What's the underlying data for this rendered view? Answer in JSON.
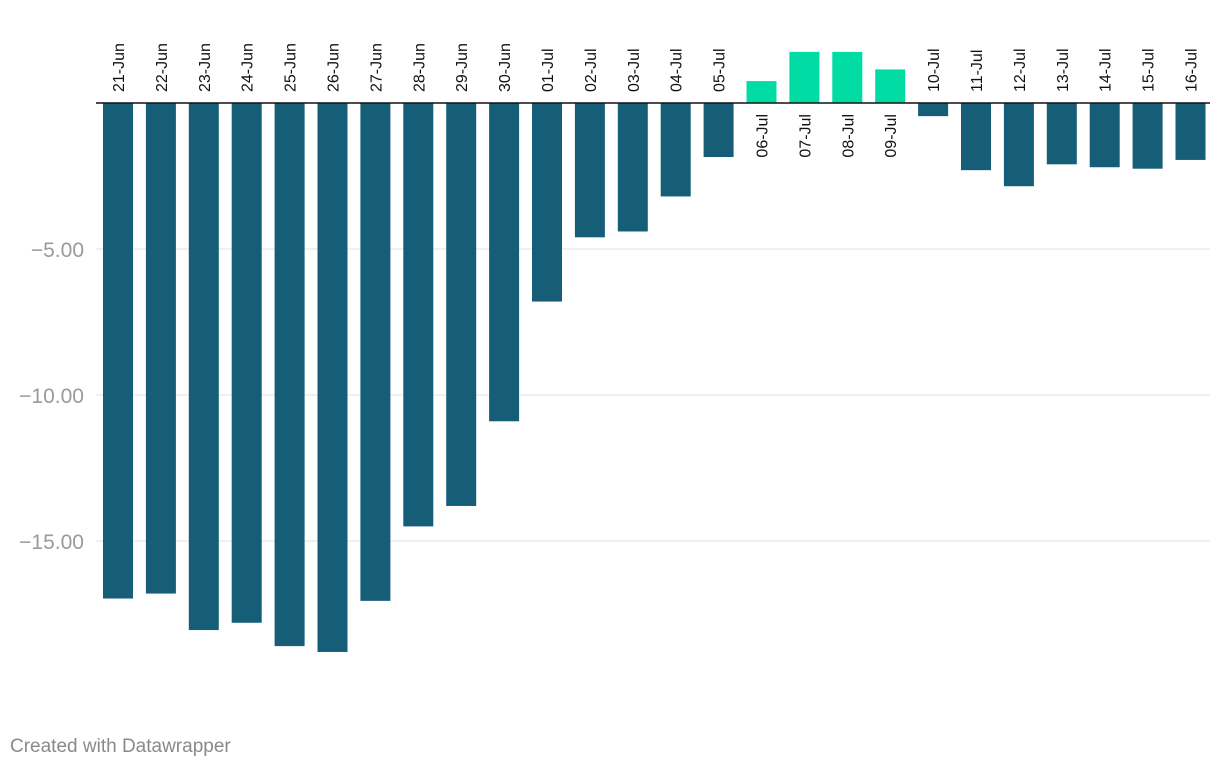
{
  "chart_data": {
    "type": "bar",
    "categories": [
      "21-Jun",
      "22-Jun",
      "23-Jun",
      "24-Jun",
      "25-Jun",
      "26-Jun",
      "27-Jun",
      "28-Jun",
      "29-Jun",
      "30-Jun",
      "01-Jul",
      "02-Jul",
      "03-Jul",
      "04-Jul",
      "05-Jul",
      "06-Jul",
      "07-Jul",
      "08-Jul",
      "09-Jul",
      "10-Jul",
      "11-Jul",
      "12-Jul",
      "13-Jul",
      "14-Jul",
      "15-Jul",
      "16-Jul"
    ],
    "values": [
      -16.97,
      -16.8,
      -18.05,
      -17.8,
      -18.6,
      -18.8,
      -17.05,
      -14.5,
      -13.8,
      -10.9,
      -6.8,
      -4.6,
      -4.4,
      -3.2,
      -1.85,
      0.75,
      1.75,
      1.75,
      1.15,
      -0.45,
      -2.3,
      -2.85,
      -2.1,
      -2.2,
      -2.25,
      -1.95
    ],
    "title": "",
    "xlabel": "",
    "ylabel": "",
    "ylim": [
      -20,
      1.75
    ],
    "y_ticks": [
      -5,
      -10,
      -15
    ],
    "y_tick_labels": [
      "−5.00",
      "−10.00",
      "−15.00"
    ],
    "grid": true,
    "legend": "none",
    "colors": {
      "negative": "#165e77",
      "positive": "#00dca3",
      "gridline": "#e2e2e2",
      "baseline": "#111111"
    }
  },
  "footer": {
    "credit": "Created with Datawrapper"
  }
}
